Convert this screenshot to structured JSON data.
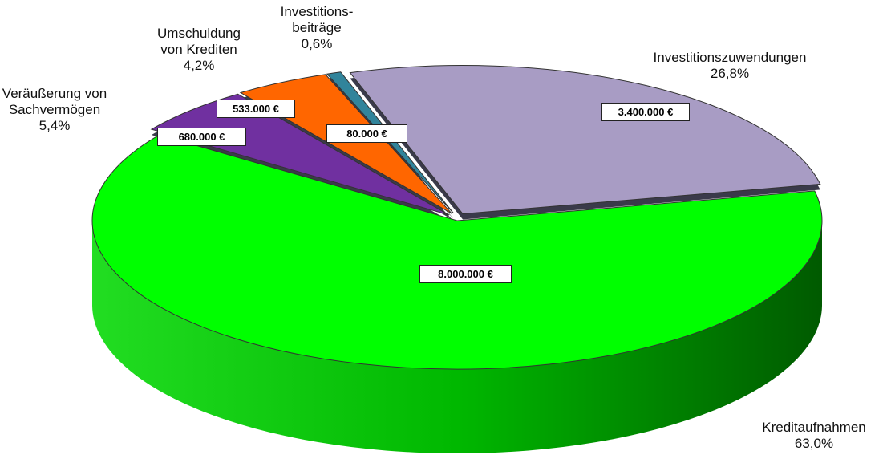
{
  "chart_data": {
    "type": "pie3d",
    "categories": [
      "Investitionszuwendungen",
      "Kreditaufnahmen",
      "Veräußerung von\nSachvermögen",
      "Umschuldung\nvon Krediten",
      "Investitions-\nbeiträge"
    ],
    "values": [
      3400000,
      8000000,
      680000,
      533000,
      80000
    ],
    "value_labels": [
      "3.400.000 €",
      "8.000.000 €",
      "680.000 €",
      "533.000 €",
      "80.000 €"
    ],
    "percentages": [
      26.8,
      63.0,
      5.4,
      4.2,
      0.6
    ],
    "percentage_labels": [
      "26,8%",
      "63,0%",
      "5,4%",
      "4,2%",
      "0,6%"
    ],
    "colors": [
      "#a89cc4",
      "#00ff00",
      "#7030a0",
      "#ff6600",
      "#31849b"
    ],
    "exploded": [
      true,
      false,
      true,
      true,
      true
    ]
  }
}
